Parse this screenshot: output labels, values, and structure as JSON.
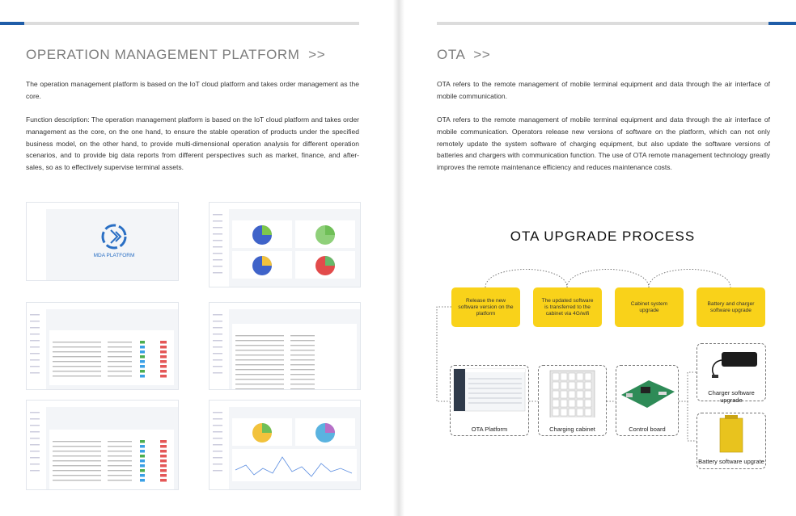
{
  "left": {
    "title": "OPERATION MANAGEMENT PLATFORM  >>",
    "paragraphs": [
      "The operation management platform is based on the IoT cloud platform and takes order management as the core.",
      "Function description: The operation management platform is based on the IoT cloud platform and takes order management as the core, on the one hand, to ensure the stable operation of products under the specified business model, on the other hand, to provide multi-dimensional operation analysis for different operation scenarios, and to provide big data reports from different perspectives such as market, finance, and after-sales, so as to effectively supervise terminal assets."
    ],
    "logo_text": "MDA PLATFORM"
  },
  "right": {
    "title": "OTA  >>",
    "paragraphs": [
      "OTA refers to the remote management of mobile terminal equipment and data through the air interface of mobile communication.",
      "OTA refers to the remote management of mobile terminal equipment and data through the air interface of mobile communication. Operators release new versions of software on the platform, which can not only remotely update the system software of charging equipment, but also update the software versions of batteries and chargers with communication function. The use of OTA remote management technology greatly improves the remote maintenance efficiency and reduces maintenance costs."
    ],
    "process": {
      "title": "OTA UPGRADE PROCESS",
      "steps": [
        "Release the new software version on the platform",
        "The updated software is transferred to the cabinet via 4G/wifi",
        "Cabinet system upgrade",
        "Battery and charger software upgrade"
      ],
      "devices": [
        "OTA Platform",
        "Charging cabinet",
        "Control board"
      ],
      "upgrades": [
        "Charger software upgrade",
        "Battery software upgrate"
      ]
    }
  }
}
